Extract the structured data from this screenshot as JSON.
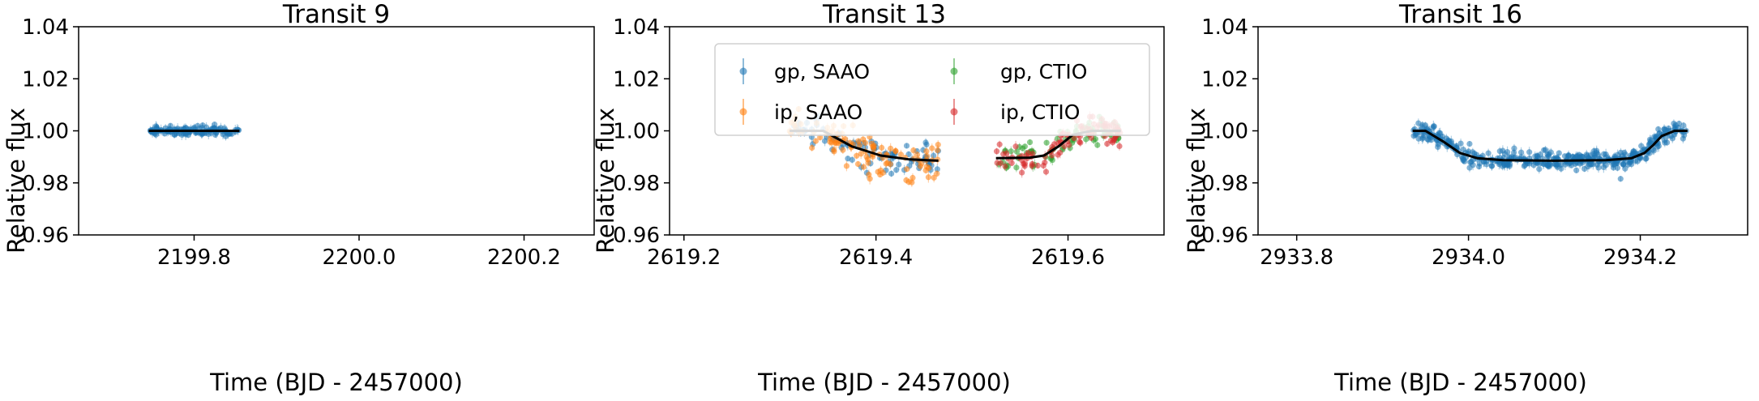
{
  "chart_data": [
    {
      "type": "scatter",
      "title": "Transit 9",
      "xlabel": "Time (BJD - 2457000)",
      "ylabel": "Relative flux",
      "xlim": [
        2199.66,
        2200.285
      ],
      "ylim": [
        0.96,
        1.04
      ],
      "xticks": [
        2199.8,
        2200.0,
        2200.2
      ],
      "xtick_labels": [
        "2199.8",
        "2200.0",
        "2200.2"
      ],
      "yticks": [
        0.96,
        0.98,
        1.0,
        1.02,
        1.04
      ],
      "ytick_labels": [
        "0.96",
        "0.98",
        "1.00",
        "1.02",
        "1.04"
      ],
      "grid": false,
      "series": [
        {
          "kind": "points",
          "color": "#1f77b4",
          "x_range": [
            2199.745,
            2199.855
          ],
          "baseline": 1.0,
          "scatter": 0.0009,
          "count": 120,
          "seed": 9
        }
      ],
      "model": {
        "color": "#000000",
        "x": [
          2199.745,
          2199.855
        ],
        "y": [
          1.0,
          1.0
        ]
      }
    },
    {
      "type": "scatter",
      "title": "Transit 13",
      "xlabel": "Time (BJD - 2457000)",
      "ylabel": "Relative flux",
      "xlim": [
        2619.185,
        2619.7
      ],
      "ylim": [
        0.96,
        1.04
      ],
      "xticks": [
        2619.2,
        2619.4,
        2619.6
      ],
      "xtick_labels": [
        "2619.2",
        "2619.4",
        "2619.6"
      ],
      "yticks": [
        0.96,
        0.98,
        1.0,
        1.02,
        1.04
      ],
      "ytick_labels": [
        "0.96",
        "0.98",
        "1.00",
        "1.02",
        "1.04"
      ],
      "grid": false,
      "legend": {
        "position": "top",
        "columns": 2,
        "entries": [
          {
            "label": "gp, SAAO",
            "color": "#1f77b4"
          },
          {
            "label": "gp, CTIO",
            "color": "#2ca02c"
          },
          {
            "label": "ip, SAAO",
            "color": "#ff7f0e"
          },
          {
            "label": "ip, CTIO",
            "color": "#d62728"
          }
        ]
      },
      "series": [
        {
          "name": "gp, SAAO",
          "kind": "points",
          "color": "#1f77b4",
          "x_range": [
            2619.31,
            2619.465
          ],
          "scatter": 0.0028,
          "count": 90,
          "seed": 131
        },
        {
          "name": "ip, SAAO",
          "kind": "points",
          "color": "#ff7f0e",
          "x_range": [
            2619.31,
            2619.465
          ],
          "scatter": 0.0035,
          "count": 110,
          "seed": 132
        },
        {
          "name": "gp, CTIO",
          "kind": "points",
          "color": "#2ca02c",
          "x_range": [
            2619.525,
            2619.655
          ],
          "scatter": 0.0022,
          "count": 80,
          "seed": 133
        },
        {
          "name": "ip, CTIO",
          "kind": "points",
          "color": "#d62728",
          "x_range": [
            2619.525,
            2619.655
          ],
          "scatter": 0.0028,
          "count": 95,
          "seed": 134
        }
      ],
      "model": {
        "color": "#000000",
        "x": [
          2619.31,
          2619.345,
          2619.375,
          2619.405,
          2619.435,
          2619.465,
          null,
          2619.525,
          2619.56,
          2619.575,
          2619.59,
          2619.605,
          2619.625,
          2619.655
        ],
        "y": [
          1.0,
          1.0,
          0.994,
          0.9905,
          0.989,
          0.9885,
          null,
          0.9895,
          0.9897,
          0.9905,
          0.994,
          0.9985,
          1.0,
          1.0
        ]
      }
    },
    {
      "type": "scatter",
      "title": "Transit 16",
      "xlabel": "Time (BJD - 2457000)",
      "ylabel": "Relative flux",
      "xlim": [
        2933.755,
        2934.325
      ],
      "ylim": [
        0.96,
        1.04
      ],
      "xticks": [
        2933.8,
        2934.0,
        2934.2
      ],
      "xtick_labels": [
        "2933.8",
        "2934.0",
        "2934.2"
      ],
      "yticks": [
        0.96,
        0.98,
        1.0,
        1.02,
        1.04
      ],
      "ytick_labels": [
        "0.96",
        "0.98",
        "1.00",
        "1.02",
        "1.04"
      ],
      "grid": false,
      "series": [
        {
          "kind": "points",
          "color": "#1f77b4",
          "x_range": [
            2933.935,
            2934.255
          ],
          "scatter": 0.0018,
          "count": 420,
          "seed": 16
        }
      ],
      "model": {
        "color": "#000000",
        "x": [
          2933.935,
          2933.95,
          2933.97,
          2933.99,
          2934.01,
          2934.04,
          2934.1,
          2934.16,
          2934.19,
          2934.205,
          2934.215,
          2934.225,
          2934.24,
          2934.255
        ],
        "y": [
          1.0,
          1.0,
          0.996,
          0.9915,
          0.9895,
          0.9887,
          0.9885,
          0.9887,
          0.9895,
          0.9915,
          0.9945,
          0.998,
          1.0,
          1.0
        ]
      }
    }
  ]
}
